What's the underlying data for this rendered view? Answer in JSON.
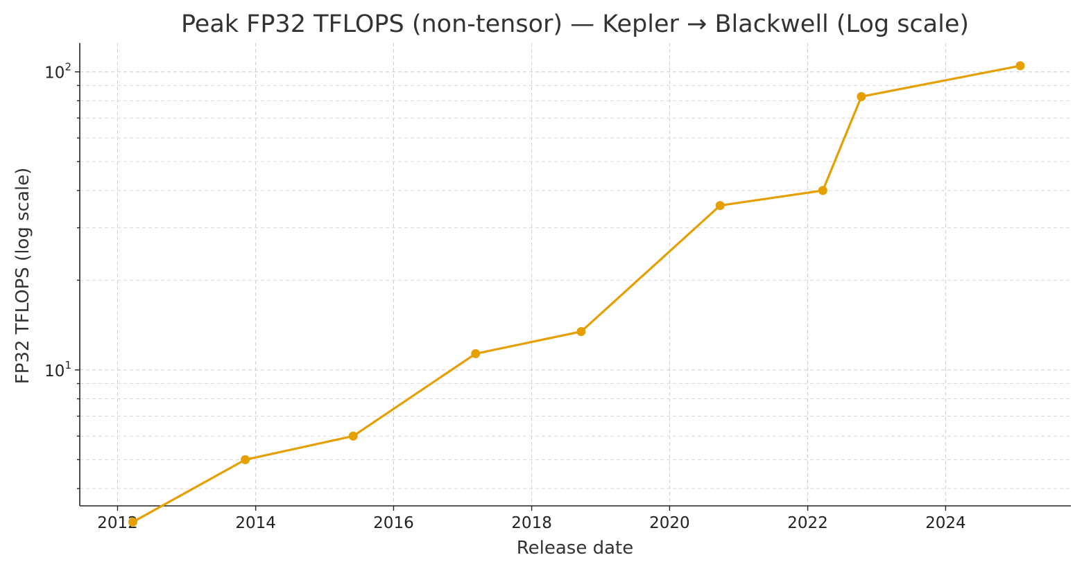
{
  "chart_data": {
    "type": "line",
    "title": "Peak FP32 TFLOPS (non-tensor) — Kepler → Blackwell (Log scale)",
    "xlabel": "Release date",
    "ylabel": "FP32 TFLOPS (log scale)",
    "yscale": "log",
    "grid": true,
    "x_ticks": [
      "2012",
      "2014",
      "2016",
      "2018",
      "2020",
      "2022",
      "2024"
    ],
    "y_ticks": [
      {
        "value": 10,
        "base": "10",
        "exp": "1"
      },
      {
        "value": 100,
        "base": "10",
        "exp": "2"
      }
    ],
    "xlim": [
      "2011-06-15",
      "2025-10-25"
    ],
    "ylim": [
      3.5,
      125
    ],
    "color": "#E69F00",
    "series": [
      {
        "x": [
          "2012-03-22",
          "2013-11-07",
          "2015-06-01",
          "2017-03-10",
          "2018-09-20",
          "2020-09-24",
          "2022-03-22",
          "2022-10-12",
          "2025-01-30"
        ],
        "y": [
          3.09,
          5.0,
          6.0,
          11.34,
          13.45,
          35.6,
          40.0,
          82.6,
          104.8
        ]
      }
    ]
  }
}
